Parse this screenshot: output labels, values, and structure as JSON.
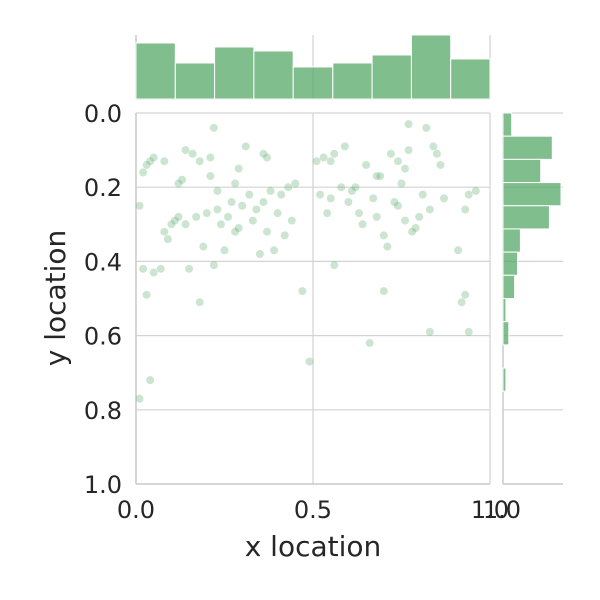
{
  "chart_data": {
    "type": "scatter",
    "subtype": "jointplot",
    "xlabel": "x location",
    "ylabel": "y location",
    "xlim": [
      0.0,
      1.0
    ],
    "ylim": [
      1.0,
      0.0
    ],
    "y_inverted": true,
    "grid": true,
    "x_ticks": [
      "0.0",
      "0.5",
      "1.0"
    ],
    "y_ticks": [
      "0.0",
      "0.2",
      "0.4",
      "0.6",
      "0.8",
      "1.0"
    ],
    "colors": {
      "points": "#55a868",
      "bars": "#55a868",
      "grid": "#d3d3d3",
      "spine": "#cccccc"
    },
    "points": [
      [
        0.01,
        0.25
      ],
      [
        0.01,
        0.77
      ],
      [
        0.02,
        0.16
      ],
      [
        0.02,
        0.42
      ],
      [
        0.03,
        0.14
      ],
      [
        0.03,
        0.49
      ],
      [
        0.04,
        0.13
      ],
      [
        0.04,
        0.72
      ],
      [
        0.05,
        0.12
      ],
      [
        0.05,
        0.43
      ],
      [
        0.07,
        0.42
      ],
      [
        0.08,
        0.13
      ],
      [
        0.08,
        0.32
      ],
      [
        0.09,
        0.34
      ],
      [
        0.1,
        0.3
      ],
      [
        0.11,
        0.29
      ],
      [
        0.12,
        0.28
      ],
      [
        0.12,
        0.19
      ],
      [
        0.13,
        0.18
      ],
      [
        0.14,
        0.1
      ],
      [
        0.14,
        0.3
      ],
      [
        0.15,
        0.42
      ],
      [
        0.16,
        0.11
      ],
      [
        0.17,
        0.28
      ],
      [
        0.18,
        0.13
      ],
      [
        0.18,
        0.51
      ],
      [
        0.19,
        0.36
      ],
      [
        0.2,
        0.27
      ],
      [
        0.21,
        0.17
      ],
      [
        0.21,
        0.12
      ],
      [
        0.22,
        0.41
      ],
      [
        0.22,
        0.04
      ],
      [
        0.23,
        0.21
      ],
      [
        0.23,
        0.26
      ],
      [
        0.24,
        0.3
      ],
      [
        0.25,
        0.37
      ],
      [
        0.26,
        0.28
      ],
      [
        0.27,
        0.24
      ],
      [
        0.28,
        0.32
      ],
      [
        0.28,
        0.19
      ],
      [
        0.29,
        0.31
      ],
      [
        0.29,
        0.15
      ],
      [
        0.3,
        0.25
      ],
      [
        0.31,
        0.09
      ],
      [
        0.32,
        0.22
      ],
      [
        0.33,
        0.29
      ],
      [
        0.34,
        0.26
      ],
      [
        0.35,
        0.38
      ],
      [
        0.36,
        0.24
      ],
      [
        0.36,
        0.11
      ],
      [
        0.37,
        0.32
      ],
      [
        0.37,
        0.12
      ],
      [
        0.38,
        0.21
      ],
      [
        0.39,
        0.37
      ],
      [
        0.4,
        0.27
      ],
      [
        0.41,
        0.22
      ],
      [
        0.42,
        0.33
      ],
      [
        0.43,
        0.2
      ],
      [
        0.44,
        0.29
      ],
      [
        0.45,
        0.19
      ],
      [
        0.47,
        0.48
      ],
      [
        0.49,
        0.67
      ],
      [
        0.51,
        0.13
      ],
      [
        0.52,
        0.22
      ],
      [
        0.53,
        0.12
      ],
      [
        0.54,
        0.27
      ],
      [
        0.55,
        0.23
      ],
      [
        0.55,
        0.13
      ],
      [
        0.56,
        0.11
      ],
      [
        0.56,
        0.41
      ],
      [
        0.58,
        0.2
      ],
      [
        0.59,
        0.09
      ],
      [
        0.6,
        0.24
      ],
      [
        0.61,
        0.21
      ],
      [
        0.62,
        0.2
      ],
      [
        0.63,
        0.27
      ],
      [
        0.64,
        0.3
      ],
      [
        0.65,
        0.14
      ],
      [
        0.66,
        0.62
      ],
      [
        0.67,
        0.23
      ],
      [
        0.68,
        0.28
      ],
      [
        0.68,
        0.17
      ],
      [
        0.69,
        0.17
      ],
      [
        0.7,
        0.33
      ],
      [
        0.7,
        0.48
      ],
      [
        0.71,
        0.36
      ],
      [
        0.72,
        0.11
      ],
      [
        0.73,
        0.24
      ],
      [
        0.74,
        0.25
      ],
      [
        0.74,
        0.13
      ],
      [
        0.75,
        0.19
      ],
      [
        0.76,
        0.15
      ],
      [
        0.76,
        0.29
      ],
      [
        0.77,
        0.03
      ],
      [
        0.77,
        0.1
      ],
      [
        0.78,
        0.32
      ],
      [
        0.79,
        0.31
      ],
      [
        0.8,
        0.28
      ],
      [
        0.81,
        0.22
      ],
      [
        0.82,
        0.04
      ],
      [
        0.83,
        0.26
      ],
      [
        0.83,
        0.59
      ],
      [
        0.84,
        0.09
      ],
      [
        0.85,
        0.11
      ],
      [
        0.86,
        0.14
      ],
      [
        0.87,
        0.23
      ],
      [
        0.91,
        0.37
      ],
      [
        0.92,
        0.51
      ],
      [
        0.93,
        0.49
      ],
      [
        0.93,
        0.26
      ],
      [
        0.94,
        0.59
      ],
      [
        0.94,
        0.22
      ],
      [
        0.96,
        0.21
      ]
    ],
    "marginal_x": {
      "bin_edges": [
        0.0,
        0.111,
        0.222,
        0.333,
        0.444,
        0.556,
        0.667,
        0.778,
        0.889,
        1.0
      ],
      "counts": [
        14,
        9,
        13,
        12,
        8,
        9,
        11,
        16,
        10
      ]
    },
    "marginal_y": {
      "bin_edges": [
        0.0,
        0.0625,
        0.125,
        0.1875,
        0.25,
        0.3125,
        0.375,
        0.4375,
        0.5,
        0.5625,
        0.625,
        0.6875,
        0.75,
        0.8125
      ],
      "counts": [
        3,
        17,
        13,
        20,
        16,
        6,
        5,
        4,
        1,
        2,
        0,
        1,
        0
      ]
    }
  }
}
